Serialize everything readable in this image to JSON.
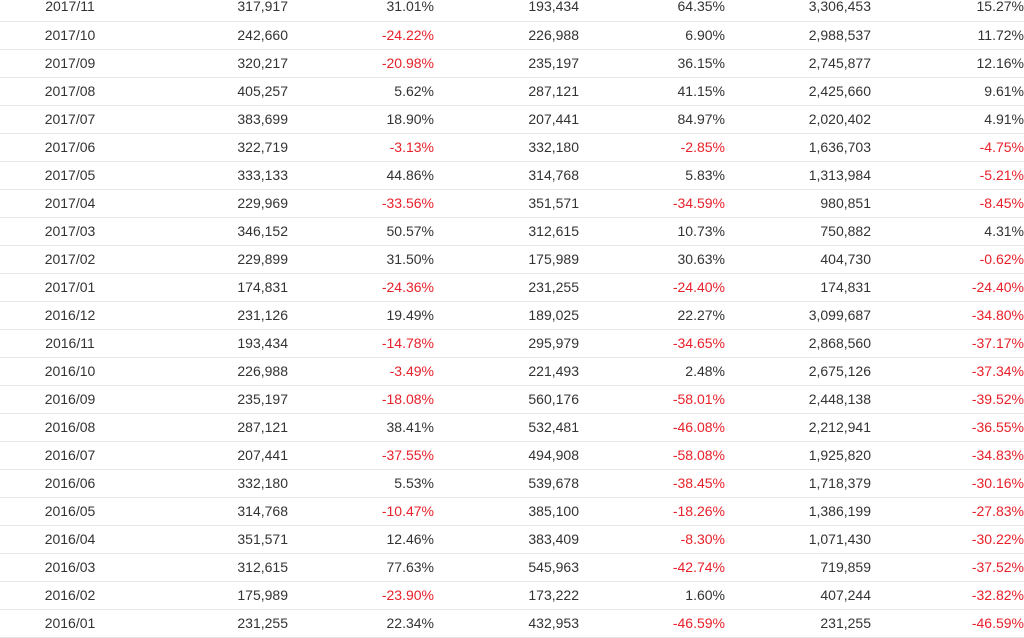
{
  "table": {
    "rows": [
      [
        "2017/11",
        "317,917",
        "31.01%",
        "193,434",
        "64.35%",
        "3,306,453",
        "15.27%"
      ],
      [
        "2017/10",
        "242,660",
        "-24.22%",
        "226,988",
        "6.90%",
        "2,988,537",
        "11.72%"
      ],
      [
        "2017/09",
        "320,217",
        "-20.98%",
        "235,197",
        "36.15%",
        "2,745,877",
        "12.16%"
      ],
      [
        "2017/08",
        "405,257",
        "5.62%",
        "287,121",
        "41.15%",
        "2,425,660",
        "9.61%"
      ],
      [
        "2017/07",
        "383,699",
        "18.90%",
        "207,441",
        "84.97%",
        "2,020,402",
        "4.91%"
      ],
      [
        "2017/06",
        "322,719",
        "-3.13%",
        "332,180",
        "-2.85%",
        "1,636,703",
        "-4.75%"
      ],
      [
        "2017/05",
        "333,133",
        "44.86%",
        "314,768",
        "5.83%",
        "1,313,984",
        "-5.21%"
      ],
      [
        "2017/04",
        "229,969",
        "-33.56%",
        "351,571",
        "-34.59%",
        "980,851",
        "-8.45%"
      ],
      [
        "2017/03",
        "346,152",
        "50.57%",
        "312,615",
        "10.73%",
        "750,882",
        "4.31%"
      ],
      [
        "2017/02",
        "229,899",
        "31.50%",
        "175,989",
        "30.63%",
        "404,730",
        "-0.62%"
      ],
      [
        "2017/01",
        "174,831",
        "-24.36%",
        "231,255",
        "-24.40%",
        "174,831",
        "-24.40%"
      ],
      [
        "2016/12",
        "231,126",
        "19.49%",
        "189,025",
        "22.27%",
        "3,099,687",
        "-34.80%"
      ],
      [
        "2016/11",
        "193,434",
        "-14.78%",
        "295,979",
        "-34.65%",
        "2,868,560",
        "-37.17%"
      ],
      [
        "2016/10",
        "226,988",
        "-3.49%",
        "221,493",
        "2.48%",
        "2,675,126",
        "-37.34%"
      ],
      [
        "2016/09",
        "235,197",
        "-18.08%",
        "560,176",
        "-58.01%",
        "2,448,138",
        "-39.52%"
      ],
      [
        "2016/08",
        "287,121",
        "38.41%",
        "532,481",
        "-46.08%",
        "2,212,941",
        "-36.55%"
      ],
      [
        "2016/07",
        "207,441",
        "-37.55%",
        "494,908",
        "-58.08%",
        "1,925,820",
        "-34.83%"
      ],
      [
        "2016/06",
        "332,180",
        "5.53%",
        "539,678",
        "-38.45%",
        "1,718,379",
        "-30.16%"
      ],
      [
        "2016/05",
        "314,768",
        "-10.47%",
        "385,100",
        "-18.26%",
        "1,386,199",
        "-27.83%"
      ],
      [
        "2016/04",
        "351,571",
        "12.46%",
        "383,409",
        "-8.30%",
        "1,071,430",
        "-30.22%"
      ],
      [
        "2016/03",
        "312,615",
        "77.63%",
        "545,963",
        "-42.74%",
        "719,859",
        "-37.52%"
      ],
      [
        "2016/02",
        "175,989",
        "-23.90%",
        "173,222",
        "1.60%",
        "407,244",
        "-32.82%"
      ],
      [
        "2016/01",
        "231,255",
        "22.34%",
        "432,953",
        "-46.59%",
        "231,255",
        "-46.59%"
      ]
    ]
  },
  "colors": {
    "text": "#333333",
    "negative": "#e8202a",
    "row_border": "#e6e6e6"
  }
}
